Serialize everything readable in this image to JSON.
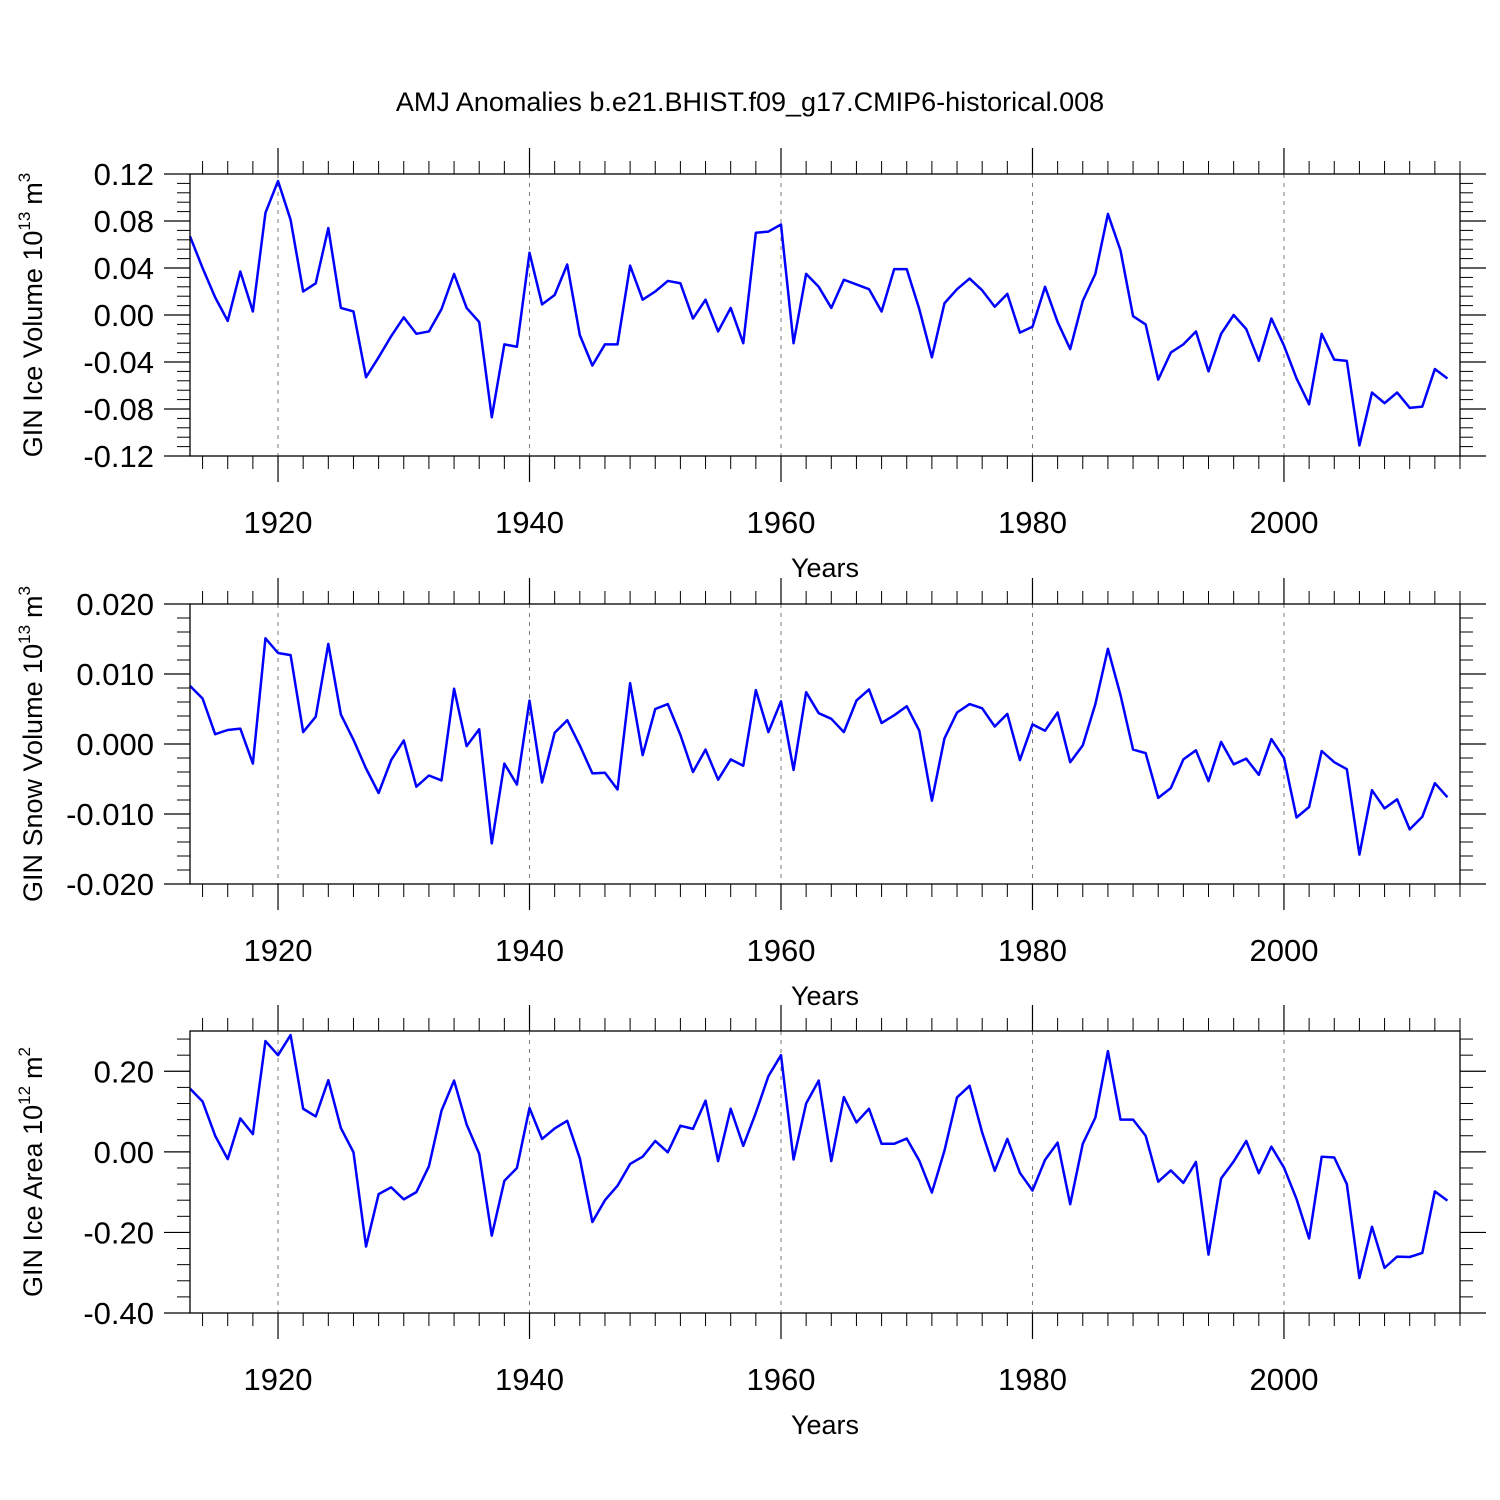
{
  "title": "AMJ Anomalies b.e21.BHIST.f09_g17.CMIP6-historical.008",
  "line_color": "#0000ff",
  "chart_data": [
    {
      "type": "line",
      "xlabel": "Years",
      "ylabel": "GIN Ice Volume 10",
      "ylabel_exp": "13",
      "ylabel_unit": "m",
      "ylabel_unit_exp": "3",
      "xlim": [
        1913,
        2014
      ],
      "ylim": [
        -0.12,
        0.12
      ],
      "yticks": [
        "0.12",
        "0.08",
        "0.04",
        "0.00",
        "-0.04",
        "-0.08",
        "-0.12"
      ],
      "xticks": [
        "1920",
        "1940",
        "1960",
        "1980",
        "2000"
      ],
      "vertical_grid": true,
      "x_start": 1913,
      "values": [
        0.067,
        0.04,
        0.015,
        -0.005,
        0.037,
        0.003,
        0.087,
        0.114,
        0.081,
        0.02,
        0.027,
        0.074,
        0.006,
        0.003,
        -0.053,
        -0.036,
        -0.018,
        -0.002,
        -0.016,
        -0.014,
        0.005,
        0.035,
        0.006,
        -0.006,
        -0.087,
        -0.025,
        -0.027,
        0.053,
        0.009,
        0.017,
        0.043,
        -0.017,
        -0.043,
        -0.025,
        -0.025,
        0.042,
        0.013,
        0.02,
        0.029,
        0.027,
        -0.003,
        0.013,
        -0.014,
        0.006,
        -0.024,
        0.07,
        0.071,
        0.077,
        -0.024,
        0.035,
        0.024,
        0.006,
        0.03,
        0.026,
        0.022,
        0.003,
        0.039,
        0.039,
        0.005,
        -0.036,
        0.01,
        0.022,
        0.031,
        0.021,
        0.007,
        0.018,
        -0.015,
        -0.01,
        0.024,
        -0.006,
        -0.029,
        0.012,
        0.035,
        0.086,
        0.055,
        -0.001,
        -0.008,
        -0.055,
        -0.032,
        -0.025,
        -0.014,
        -0.048,
        -0.016,
        0.0,
        -0.012,
        -0.039,
        -0.003,
        -0.026,
        -0.054,
        -0.076,
        -0.016,
        -0.038,
        -0.039,
        -0.111,
        -0.066,
        -0.075,
        -0.066,
        -0.079,
        -0.078,
        -0.046,
        -0.054
      ]
    },
    {
      "type": "line",
      "xlabel": "Years",
      "ylabel": "GIN Snow Volume 10",
      "ylabel_exp": "13",
      "ylabel_unit": "m",
      "ylabel_unit_exp": "3",
      "xlim": [
        1913,
        2014
      ],
      "ylim": [
        -0.02,
        0.02
      ],
      "yticks": [
        "0.020",
        "0.010",
        "0.000",
        "-0.010",
        "-0.020"
      ],
      "xticks": [
        "1920",
        "1940",
        "1960",
        "1980",
        "2000"
      ],
      "vertical_grid": true,
      "x_start": 1913,
      "values": [
        0.0083,
        0.0065,
        0.0014,
        0.002,
        0.0022,
        -0.0028,
        0.0151,
        0.013,
        0.0127,
        0.0017,
        0.0039,
        0.0143,
        0.0042,
        0.0006,
        -0.0035,
        -0.007,
        -0.0023,
        0.0005,
        -0.0061,
        -0.0045,
        -0.0052,
        0.0079,
        -0.0003,
        0.0021,
        -0.0142,
        -0.0028,
        -0.0058,
        0.0062,
        -0.0055,
        0.0016,
        0.0034,
        -0.0002,
        -0.0042,
        -0.0041,
        -0.0065,
        0.0087,
        -0.0016,
        0.005,
        0.0057,
        0.0013,
        -0.004,
        -0.0008,
        -0.0051,
        -0.0022,
        -0.0031,
        0.0077,
        0.0017,
        0.0061,
        -0.0037,
        0.0074,
        0.0044,
        0.0036,
        0.0017,
        0.0062,
        0.0078,
        0.003,
        0.0041,
        0.0054,
        0.0019,
        -0.0081,
        0.0008,
        0.0045,
        0.0057,
        0.0051,
        0.0025,
        0.0043,
        -0.0023,
        0.0028,
        0.0019,
        0.0045,
        -0.0026,
        -0.0002,
        0.0057,
        0.0136,
        0.007,
        -0.0008,
        -0.0013,
        -0.0077,
        -0.0063,
        -0.0022,
        -0.0009,
        -0.0053,
        0.0003,
        -0.0029,
        -0.0021,
        -0.0044,
        0.0007,
        -0.002,
        -0.0105,
        -0.009,
        -0.001,
        -0.0026,
        -0.0036,
        -0.0158,
        -0.0066,
        -0.0092,
        -0.0079,
        -0.0122,
        -0.0104,
        -0.0056,
        -0.0076
      ]
    },
    {
      "type": "line",
      "xlabel": "Years",
      "ylabel": "GIN Ice Area 10",
      "ylabel_exp": "12",
      "ylabel_unit": "m",
      "ylabel_unit_exp": "2",
      "xlim": [
        1913,
        2014
      ],
      "ylim": [
        -0.4,
        0.3
      ],
      "yticks": [
        "0.20",
        "0.00",
        "-0.20",
        "-0.40"
      ],
      "xticks": [
        "1920",
        "1940",
        "1960",
        "1980",
        "2000"
      ],
      "vertical_grid": true,
      "x_start": 1913,
      "values": [
        0.157,
        0.125,
        0.04,
        -0.018,
        0.083,
        0.044,
        0.275,
        0.24,
        0.29,
        0.107,
        0.088,
        0.178,
        0.059,
        -0.001,
        -0.235,
        -0.105,
        -0.088,
        -0.118,
        -0.1,
        -0.036,
        0.102,
        0.177,
        0.068,
        -0.005,
        -0.208,
        -0.072,
        -0.04,
        0.109,
        0.032,
        0.058,
        0.077,
        -0.016,
        -0.174,
        -0.12,
        -0.084,
        -0.03,
        -0.012,
        0.027,
        -0.001,
        0.065,
        0.057,
        0.127,
        -0.023,
        0.107,
        0.015,
        0.097,
        0.188,
        0.24,
        -0.019,
        0.12,
        0.177,
        -0.023,
        0.136,
        0.073,
        0.107,
        0.02,
        0.02,
        0.033,
        -0.022,
        -0.101,
        0.003,
        0.135,
        0.164,
        0.048,
        -0.047,
        0.032,
        -0.052,
        -0.096,
        -0.02,
        0.023,
        -0.13,
        0.02,
        0.085,
        0.25,
        0.08,
        0.08,
        0.04,
        -0.074,
        -0.046,
        -0.077,
        -0.025,
        -0.255,
        -0.066,
        -0.024,
        0.027,
        -0.053,
        0.013,
        -0.039,
        -0.117,
        -0.215,
        -0.012,
        -0.014,
        -0.08,
        -0.313,
        -0.186,
        -0.288,
        -0.26,
        -0.261,
        -0.251,
        -0.098,
        -0.121
      ]
    }
  ]
}
